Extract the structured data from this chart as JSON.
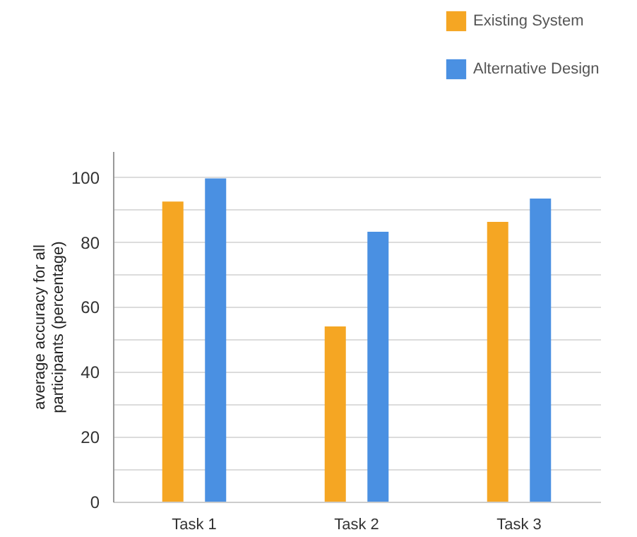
{
  "chart_data": {
    "type": "bar",
    "ylabel": "average accuracy for all participants (percentage)",
    "categories": [
      "Task 1",
      "Task 2",
      "Task 3"
    ],
    "series": [
      {
        "name": "Existing System",
        "color": "#f5a623",
        "values": [
          92.5,
          54.0,
          86.2
        ]
      },
      {
        "name": "Alternative Design",
        "color": "#4a90e2",
        "values": [
          99.6,
          83.2,
          93.4
        ]
      }
    ],
    "ylim": [
      0,
      108
    ],
    "yticks": [
      0,
      {
        "value": 10,
        "label": null
      },
      20,
      {
        "value": 30,
        "label": null
      },
      40,
      {
        "value": 50,
        "label": null
      },
      60,
      {
        "value": 70,
        "label": null
      },
      80,
      {
        "value": 90,
        "label": null
      },
      100
    ],
    "grid": "y",
    "legend": "top right"
  }
}
